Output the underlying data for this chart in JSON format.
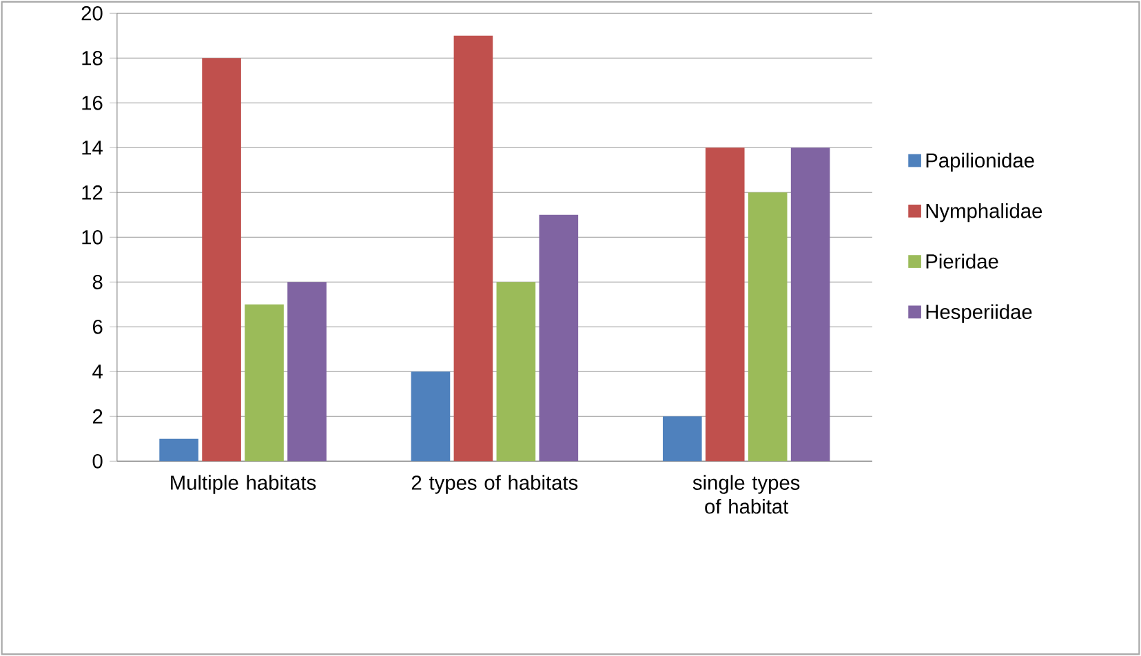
{
  "chart_data": {
    "type": "bar",
    "categories": [
      "Multiple habitats",
      "2 types of habitats",
      "single types of habitat"
    ],
    "series": [
      {
        "name": "Papilionidae",
        "color": "#4f81bd",
        "values": [
          1,
          4,
          2
        ]
      },
      {
        "name": "Nymphalidae",
        "color": "#c0504d",
        "values": [
          18,
          19,
          14
        ]
      },
      {
        "name": "Pieridae",
        "color": "#9bbb59",
        "values": [
          7,
          8,
          12
        ]
      },
      {
        "name": "Hesperiidae",
        "color": "#8064a2",
        "values": [
          8,
          11,
          14
        ]
      }
    ],
    "ylim": [
      0,
      20
    ],
    "yticks": [
      0,
      2,
      4,
      6,
      8,
      10,
      12,
      14,
      16,
      18,
      20
    ],
    "grid": "y",
    "legend": "right"
  }
}
